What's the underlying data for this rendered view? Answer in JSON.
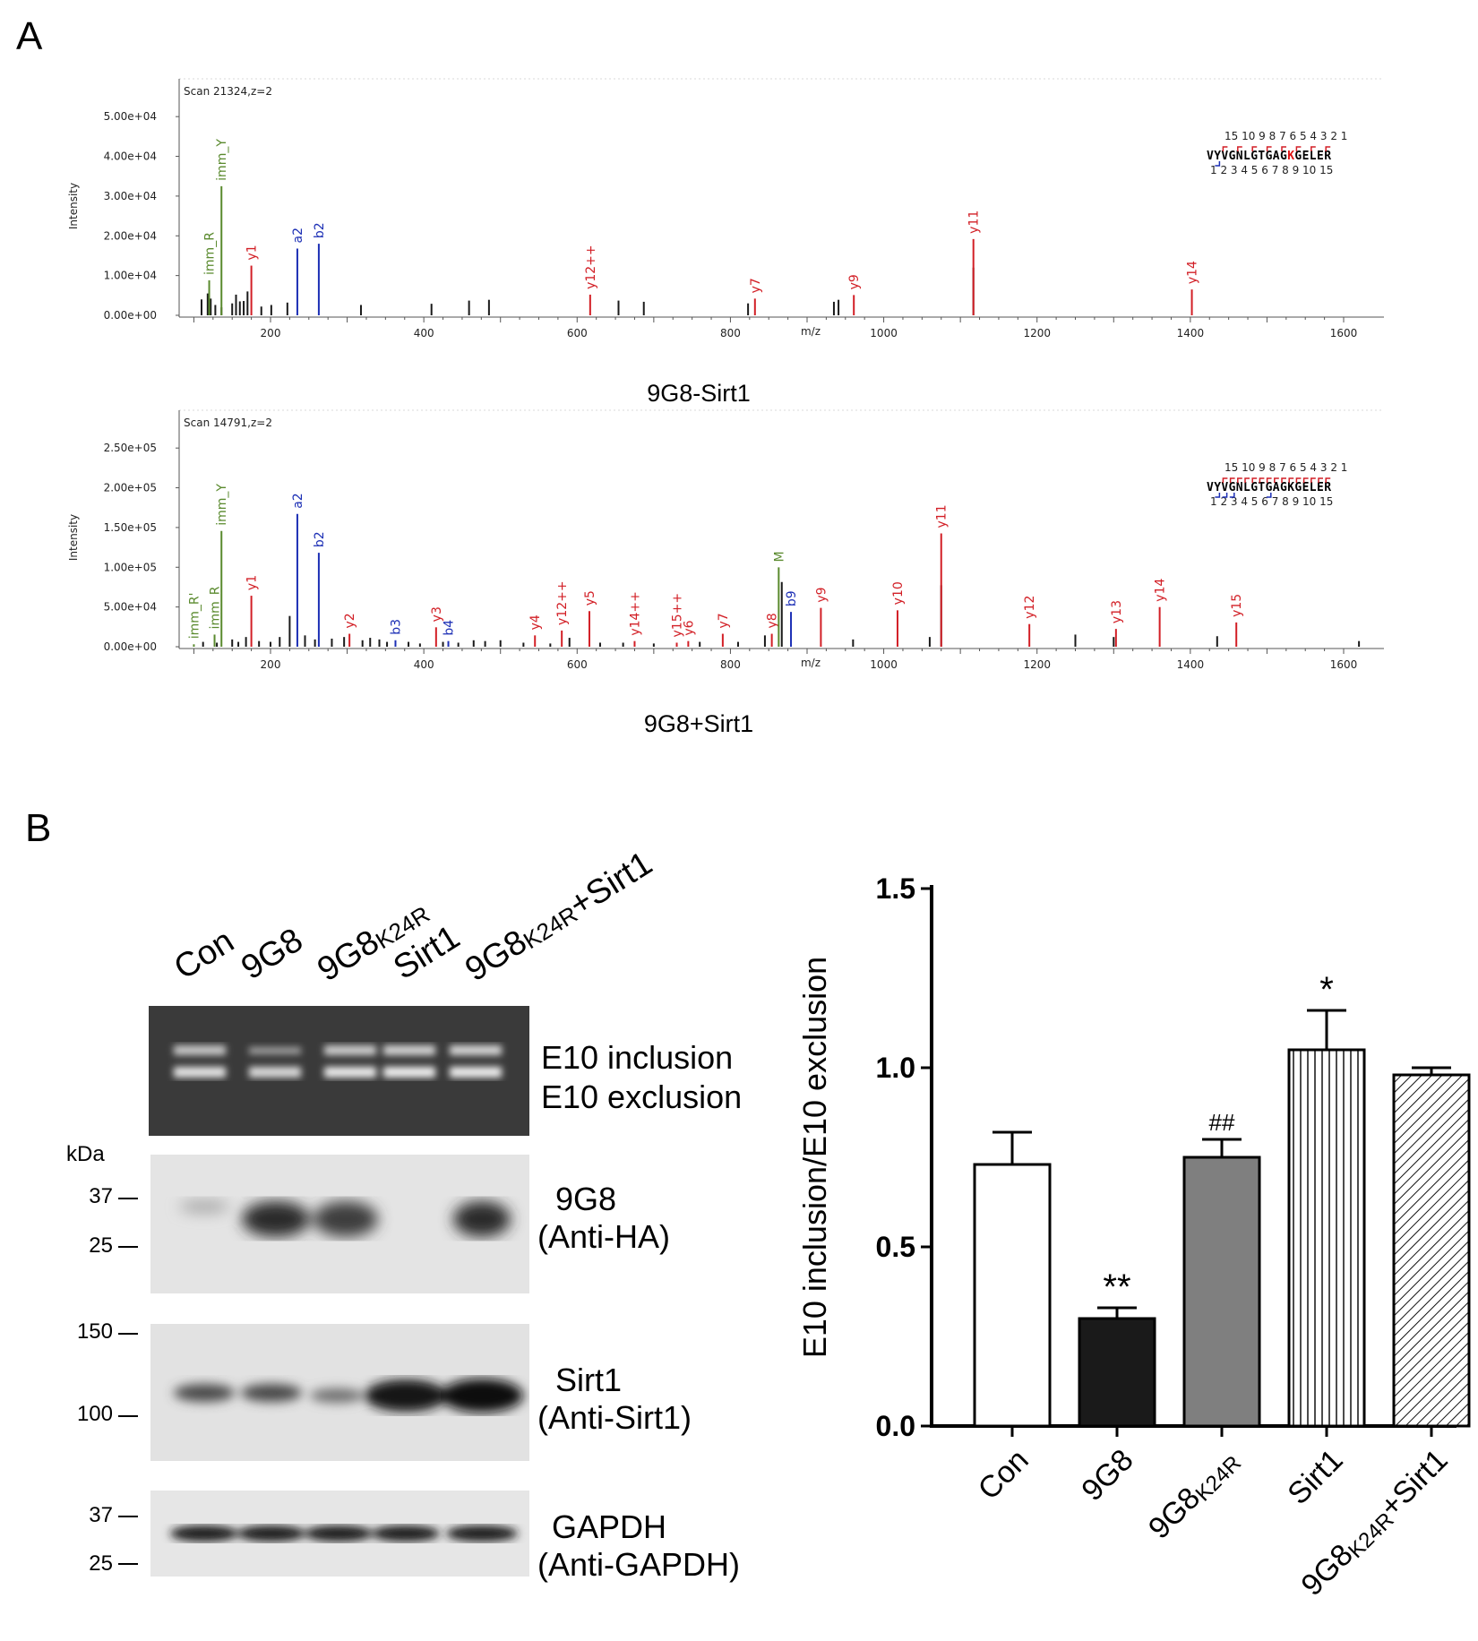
{
  "panels": {
    "a": "A",
    "b": "B"
  },
  "spectra": [
    {
      "scan": "Scan 21324,z=2",
      "caption": "9G8-Sirt1",
      "ylabel": "Intensity",
      "xlabel": "m/z",
      "yticks": [
        "0.00e+00",
        "1.00e+04",
        "2.00e+04",
        "3.00e+04",
        "4.00e+04",
        "5.00e+04"
      ],
      "ymax": 55000,
      "sequence": "VYVGNLGTGAGKGELER",
      "modified_residue_index": 11,
      "top_numbers": "15          10 9 8 7 6 5 4 3 2 1",
      "bottom_numbers": "1 2 3 4 5 6 7 8 9 10          15",
      "peaks": [
        {
          "mz": 110,
          "i": 4000
        },
        {
          "mz": 118,
          "i": 5500
        },
        {
          "mz": 122,
          "i": 4200
        },
        {
          "mz": 128,
          "i": 2600
        },
        {
          "mz": 136,
          "i": 2000
        },
        {
          "mz": 150,
          "i": 3000
        },
        {
          "mz": 155,
          "i": 5200
        },
        {
          "mz": 160,
          "i": 3500
        },
        {
          "mz": 165,
          "i": 3600
        },
        {
          "mz": 170,
          "i": 6000
        },
        {
          "mz": 188,
          "i": 2200
        },
        {
          "mz": 201,
          "i": 2600
        },
        {
          "mz": 222,
          "i": 3200
        },
        {
          "mz": 318,
          "i": 2600
        },
        {
          "mz": 410,
          "i": 2900
        },
        {
          "mz": 459,
          "i": 3700
        },
        {
          "mz": 485,
          "i": 3900
        },
        {
          "mz": 654,
          "i": 3700
        },
        {
          "mz": 687,
          "i": 3400
        },
        {
          "mz": 823,
          "i": 3000
        },
        {
          "mz": 935,
          "i": 3400
        },
        {
          "mz": 941,
          "i": 3900
        },
        {
          "mz": 1117,
          "i": 12000
        }
      ],
      "ions": [
        {
          "mz": 120,
          "i": 8800,
          "label": "imm_R",
          "color": "#5a8a2e"
        },
        {
          "mz": 136,
          "i": 32500,
          "label": "imm_Y",
          "color": "#5a8a2e"
        },
        {
          "mz": 175,
          "i": 12500,
          "label": "y1",
          "color": "#d21f26"
        },
        {
          "mz": 235,
          "i": 16800,
          "label": "a2",
          "color": "#1c2fb5"
        },
        {
          "mz": 263,
          "i": 18000,
          "label": "b2",
          "color": "#1c2fb5"
        },
        {
          "mz": 617,
          "i": 5200,
          "label": "y12++",
          "color": "#d21f26"
        },
        {
          "mz": 832,
          "i": 4200,
          "label": "y7",
          "color": "#d21f26"
        },
        {
          "mz": 961,
          "i": 5100,
          "label": "y9",
          "color": "#d21f26"
        },
        {
          "mz": 1117,
          "i": 19200,
          "label": "y11",
          "color": "#d21f26"
        },
        {
          "mz": 1402,
          "i": 6500,
          "label": "y14",
          "color": "#d21f26"
        }
      ]
    },
    {
      "scan": "Scan 14791,z=2",
      "caption": "9G8+Sirt1",
      "ylabel": "Intensity",
      "xlabel": "m/z",
      "yticks": [
        "0.00e+00",
        "5.00e+04",
        "1.00e+05",
        "1.50e+05",
        "2.00e+05",
        "2.50e+05"
      ],
      "ymax": 270000,
      "sequence": "VYVGNLGTGAGKGELER",
      "modified_residue_index": -1,
      "top_numbers": "15          10 9 8 7 6 5 4 3 2 1",
      "bottom_numbers": "1 2 3 4 5 6 7 8 9 10          15",
      "peaks": [
        {
          "mz": 112,
          "i": 6000
        },
        {
          "mz": 130,
          "i": 5000
        },
        {
          "mz": 150,
          "i": 9000
        },
        {
          "mz": 158,
          "i": 6000
        },
        {
          "mz": 168,
          "i": 12000
        },
        {
          "mz": 185,
          "i": 7000
        },
        {
          "mz": 200,
          "i": 6000
        },
        {
          "mz": 212,
          "i": 12000
        },
        {
          "mz": 225,
          "i": 38000
        },
        {
          "mz": 245,
          "i": 14000
        },
        {
          "mz": 258,
          "i": 9000
        },
        {
          "mz": 280,
          "i": 10000
        },
        {
          "mz": 296,
          "i": 12000
        },
        {
          "mz": 320,
          "i": 8000
        },
        {
          "mz": 330,
          "i": 11000
        },
        {
          "mz": 342,
          "i": 9000
        },
        {
          "mz": 352,
          "i": 6000
        },
        {
          "mz": 380,
          "i": 6000
        },
        {
          "mz": 395,
          "i": 4000
        },
        {
          "mz": 425,
          "i": 6000
        },
        {
          "mz": 445,
          "i": 5000
        },
        {
          "mz": 465,
          "i": 8000
        },
        {
          "mz": 480,
          "i": 7000
        },
        {
          "mz": 500,
          "i": 8000
        },
        {
          "mz": 530,
          "i": 5000
        },
        {
          "mz": 565,
          "i": 4000
        },
        {
          "mz": 590,
          "i": 11000
        },
        {
          "mz": 630,
          "i": 5000
        },
        {
          "mz": 660,
          "i": 5000
        },
        {
          "mz": 700,
          "i": 4000
        },
        {
          "mz": 760,
          "i": 6000
        },
        {
          "mz": 810,
          "i": 6000
        },
        {
          "mz": 845,
          "i": 14000
        },
        {
          "mz": 867,
          "i": 80000
        },
        {
          "mz": 960,
          "i": 9000
        },
        {
          "mz": 1060,
          "i": 12000
        },
        {
          "mz": 1075,
          "i": 76000
        },
        {
          "mz": 1250,
          "i": 15000
        },
        {
          "mz": 1300,
          "i": 12000
        },
        {
          "mz": 1435,
          "i": 13000
        },
        {
          "mz": 1620,
          "i": 7000
        }
      ],
      "ions": [
        {
          "mz": 100,
          "i": 3000,
          "label": "imm_R'",
          "color": "#5a8a2e"
        },
        {
          "mz": 127,
          "i": 15000,
          "label": "imm_R",
          "color": "#5a8a2e"
        },
        {
          "mz": 136,
          "i": 143000,
          "label": "imm_Y",
          "color": "#5a8a2e"
        },
        {
          "mz": 175,
          "i": 63000,
          "label": "y1",
          "color": "#d21f26"
        },
        {
          "mz": 235,
          "i": 164000,
          "label": "a2",
          "color": "#1c2fb5"
        },
        {
          "mz": 263,
          "i": 116000,
          "label": "b2",
          "color": "#1c2fb5"
        },
        {
          "mz": 303,
          "i": 16000,
          "label": "y2",
          "color": "#d21f26"
        },
        {
          "mz": 363,
          "i": 8000,
          "label": "b3",
          "color": "#1c2fb5"
        },
        {
          "mz": 416,
          "i": 24000,
          "label": "y3",
          "color": "#d21f26"
        },
        {
          "mz": 432,
          "i": 7000,
          "label": "b4",
          "color": "#1c2fb5"
        },
        {
          "mz": 545,
          "i": 14000,
          "label": "y4",
          "color": "#d21f26"
        },
        {
          "mz": 580,
          "i": 20000,
          "label": "y12++",
          "color": "#d21f26"
        },
        {
          "mz": 616,
          "i": 44000,
          "label": "y5",
          "color": "#d21f26"
        },
        {
          "mz": 675,
          "i": 7000,
          "label": "y14++",
          "color": "#d21f26"
        },
        {
          "mz": 730,
          "i": 5000,
          "label": "y15++",
          "color": "#d21f26"
        },
        {
          "mz": 745,
          "i": 7000,
          "label": "y6",
          "color": "#d21f26"
        },
        {
          "mz": 790,
          "i": 16000,
          "label": "y7",
          "color": "#d21f26"
        },
        {
          "mz": 854,
          "i": 16000,
          "label": "y8",
          "color": "#d21f26"
        },
        {
          "mz": 863,
          "i": 98000,
          "label": "M",
          "color": "#5a8a2e"
        },
        {
          "mz": 879,
          "i": 43000,
          "label": "b9",
          "color": "#1c2fb5"
        },
        {
          "mz": 918,
          "i": 48000,
          "label": "y9",
          "color": "#d21f26"
        },
        {
          "mz": 1018,
          "i": 45000,
          "label": "y10",
          "color": "#d21f26"
        },
        {
          "mz": 1075,
          "i": 140000,
          "label": "y11",
          "color": "#d21f26"
        },
        {
          "mz": 1190,
          "i": 28000,
          "label": "y12",
          "color": "#d21f26"
        },
        {
          "mz": 1303,
          "i": 22000,
          "label": "y13",
          "color": "#d21f26"
        },
        {
          "mz": 1360,
          "i": 49000,
          "label": "y14",
          "color": "#d21f26"
        },
        {
          "mz": 1460,
          "i": 30000,
          "label": "y15",
          "color": "#d21f26"
        }
      ]
    }
  ],
  "xticks": [
    "200",
    "400",
    "600",
    "800",
    "1000",
    "1200",
    "1400",
    "1600"
  ],
  "blot": {
    "lanes": [
      {
        "main": "Con",
        "sub": "",
        "tail": ""
      },
      {
        "main": "9G8",
        "sub": "",
        "tail": ""
      },
      {
        "main": "9G8",
        "sub": "K24R",
        "tail": ""
      },
      {
        "main": "Sirt1",
        "sub": "",
        "tail": ""
      },
      {
        "main": "9G8",
        "sub": "K24R",
        "tail": "+Sirt1"
      }
    ],
    "gel_labels": [
      "E10 inclusion",
      "E10 exclusion"
    ],
    "kda_title": "kDa",
    "ha_label": [
      "9G8",
      "(Anti-HA)"
    ],
    "ha_markers": [
      "37",
      "25"
    ],
    "sirt_label": [
      "Sirt1",
      "(Anti-Sirt1)"
    ],
    "sirt_markers": [
      "150",
      "100"
    ],
    "gapdh_label": [
      "GAPDH",
      "(Anti-GAPDH)"
    ],
    "gapdh_markers": [
      "37",
      "25"
    ]
  },
  "chart_data": {
    "type": "bar",
    "categories": [
      "Con",
      "9G8",
      "9G8K24R",
      "Sirt1",
      "9G8K24R+Sirt1"
    ],
    "category_display": [
      {
        "main": "Con",
        "sub": "",
        "tail": ""
      },
      {
        "main": "9G8",
        "sub": "",
        "tail": ""
      },
      {
        "main": "9G8",
        "sub": "K24R",
        "tail": ""
      },
      {
        "main": "Sirt1",
        "sub": "",
        "tail": ""
      },
      {
        "main": "9G8",
        "sub": "K24R",
        "tail": "+Sirt1"
      }
    ],
    "values": [
      0.73,
      0.3,
      0.75,
      1.05,
      0.98
    ],
    "errors": [
      0.09,
      0.03,
      0.05,
      0.11,
      0.02
    ],
    "annotations": [
      "",
      "**",
      "##",
      "*",
      ""
    ],
    "ylabel": "E10 inclusion/E10 exclusion",
    "ylim": [
      0,
      1.5
    ],
    "yticks": [
      "0.0",
      "0.5",
      "1.0",
      "1.5"
    ],
    "fills": [
      "white",
      "#1a1a1a",
      "#7f7f7f",
      "vertical-stripes",
      "diagonal-hatch"
    ]
  }
}
